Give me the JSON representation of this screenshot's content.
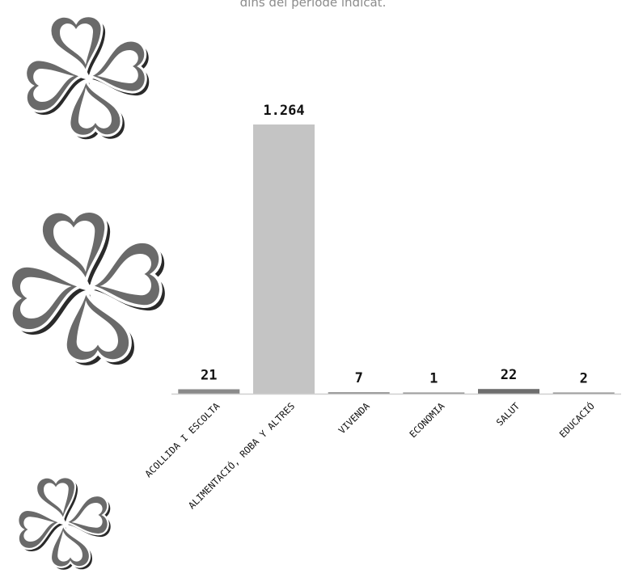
{
  "subtitle": "dins del període indicat.",
  "logo_icon": "cross-of-hearts-icon",
  "colors": {
    "bar_main": "#c4c4c4",
    "bar_small": "#8a8a8a",
    "bar_salut": "#6e6e6e",
    "axis": "#d0d0d0",
    "logo": "#6a6a6a",
    "logo_shadow": "#2a2a2a"
  },
  "chart_data": {
    "type": "bar",
    "title": "",
    "xlabel": "",
    "ylabel": "",
    "categories": [
      "ACOLLIDA I ESCOLTA",
      "ALIMENTACIÓ, ROBA Y ALTRES",
      "VIVENDA",
      "ECONOMIA",
      "SALUT",
      "EDUCACIÓ"
    ],
    "values": [
      21,
      1264,
      7,
      1,
      22,
      2
    ],
    "data_labels": [
      "21",
      "1.264",
      "7",
      "1",
      "22",
      "2"
    ],
    "ylim": [
      0,
      1264
    ],
    "grid": false,
    "legend": "none"
  }
}
